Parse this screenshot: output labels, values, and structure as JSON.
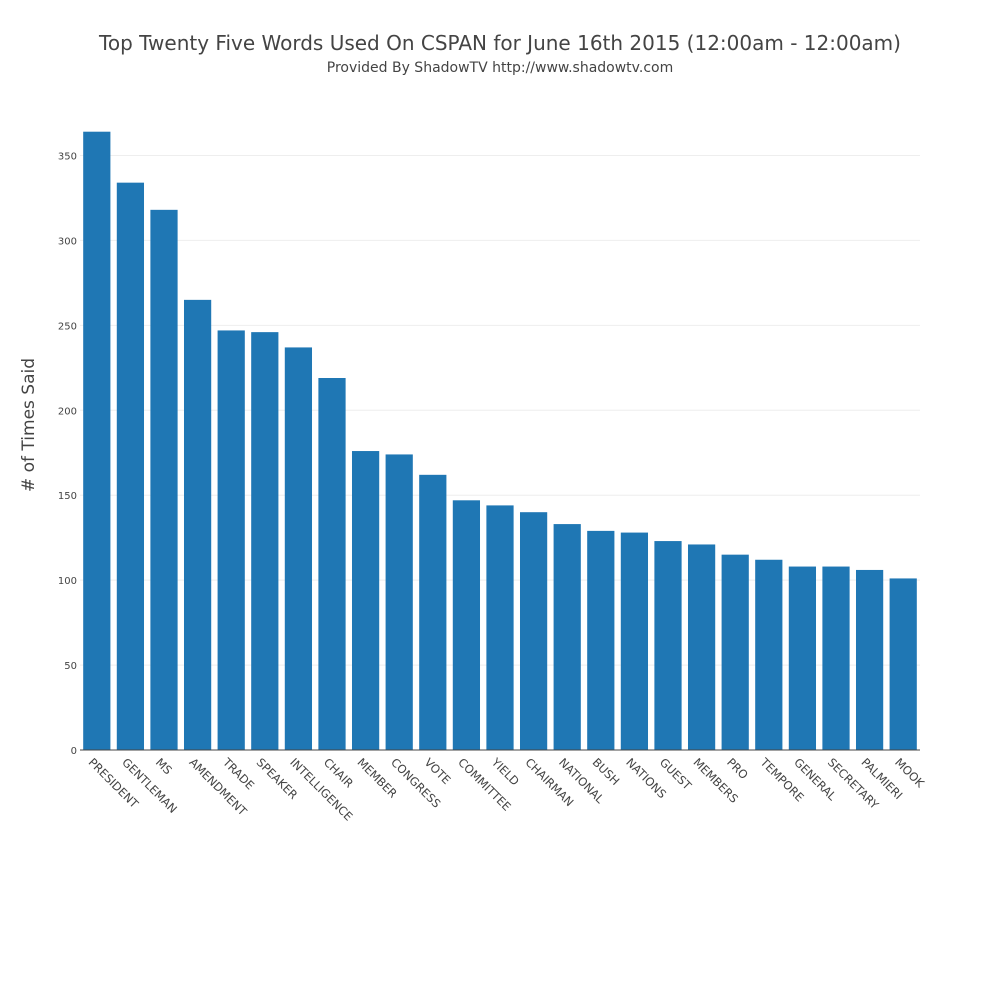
{
  "chart_data": {
    "type": "bar",
    "title": "Top Twenty Five Words Used On CSPAN for June 16th 2015 (12:00am - 12:00am)",
    "subtitle": "Provided By ShadowTV  http://www.shadowtv.com",
    "xlabel": "",
    "ylabel": "# of Times Said",
    "ylim": [
      0,
      365
    ],
    "yticks": [
      0,
      50,
      100,
      150,
      200,
      250,
      300,
      350
    ],
    "grid": true,
    "bar_color": "#1f77b4",
    "categories": [
      "PRESIDENT",
      "GENTLEMAN",
      "MS",
      "AMENDMENT",
      "TRADE",
      "SPEAKER",
      "INTELLIGENCE",
      "CHAIR",
      "MEMBER",
      "CONGRESS",
      "VOTE",
      "COMMITTEE",
      "YIELD",
      "CHAIRMAN",
      "NATIONAL",
      "BUSH",
      "NATIONS",
      "GUEST",
      "MEMBERS",
      "PRO",
      "TEMPORE",
      "GENERAL",
      "SECRETARY",
      "PALMIERI",
      "MOOK"
    ],
    "values": [
      364,
      334,
      318,
      265,
      247,
      246,
      237,
      219,
      176,
      174,
      162,
      147,
      144,
      140,
      133,
      129,
      128,
      123,
      121,
      115,
      112,
      108,
      108,
      106,
      101
    ]
  }
}
